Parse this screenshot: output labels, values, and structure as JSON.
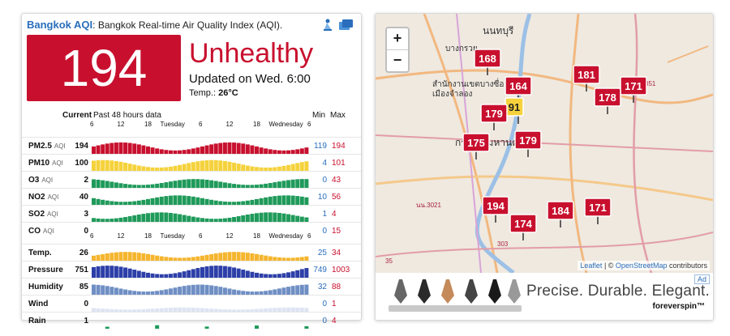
{
  "header": {
    "city": "Bangkok AQI",
    "sep": ":",
    "subtitle": "Bangkok Real-time Air Quality Index (AQI)."
  },
  "aqi": {
    "value": "194",
    "status": "Unhealthy",
    "updated": "Updated on Wed. 6:00",
    "temp_label": "Temp.:",
    "temp_value": "26°C"
  },
  "colors": {
    "unhealthy": "#c8102e",
    "moderate": "#f5d23c",
    "good": "#1f9a5a",
    "blue_link": "#2a6ebb"
  },
  "table": {
    "col_current": "Current",
    "col_history": "Past 48 hours data",
    "col_min": "Min",
    "col_max": "Max",
    "tick_labels": [
      "6",
      "12",
      "18",
      "Tuesday",
      "6",
      "12",
      "18",
      "Wednesday",
      "6"
    ],
    "rows": [
      {
        "name": "PM2.5",
        "unit": "AQI",
        "current": "194",
        "min": "119",
        "max": "194",
        "color": "#c8102e",
        "level": 0.75
      },
      {
        "name": "PM10",
        "unit": "AQI",
        "current": "100",
        "min": "4",
        "max": "101",
        "color": "#f5d23c",
        "level": 0.7
      },
      {
        "name": "O3",
        "unit": "AQI",
        "current": "2",
        "min": "0",
        "max": "43",
        "color": "#1f9a5a",
        "level": 0.55
      },
      {
        "name": "NO2",
        "unit": "AQI",
        "current": "40",
        "min": "10",
        "max": "56",
        "color": "#1f9a5a",
        "level": 0.6
      },
      {
        "name": "SO2",
        "unit": "AQI",
        "current": "3",
        "min": "1",
        "max": "4",
        "color": "#1f9a5a",
        "level": 0.6
      },
      {
        "name": "CO",
        "unit": "AQI",
        "current": "0",
        "min": "0",
        "max": "15",
        "color": "#1f9a5a",
        "level": 0.0
      },
      {
        "name": "Temp.",
        "unit": "",
        "current": "26",
        "min": "25",
        "max": "34",
        "color": "#f5b52e",
        "level": 0.55
      },
      {
        "name": "Pressure",
        "unit": "",
        "current": "751",
        "min": "749",
        "max": "1003",
        "color": "#2d3fa8",
        "level": 0.8
      },
      {
        "name": "Humidity",
        "unit": "",
        "current": "85",
        "min": "32",
        "max": "88",
        "color": "#6f8fc4",
        "level": 0.65
      },
      {
        "name": "Wind",
        "unit": "",
        "current": "0",
        "min": "0",
        "max": "1",
        "color": "#dde4f3",
        "level": 0.2
      },
      {
        "name": "Rain",
        "unit": "",
        "current": "1",
        "min": "0",
        "max": "4",
        "color": "#1f9a5a",
        "level": 0.15
      }
    ]
  },
  "map": {
    "zoom_in": "+",
    "zoom_out": "−",
    "attribution_leaflet": "Leaflet",
    "attribution_sep": " | © ",
    "attribution_osm": "OpenStreetMap",
    "attribution_tail": " contributors",
    "markers": [
      "168",
      "164",
      "91",
      "181",
      "171",
      "178",
      "179",
      "175",
      "179",
      "194",
      "184",
      "174",
      "171"
    ],
    "places": [
      "นนทบุรี",
      "บางกรวย",
      "สำนักงานเขตบางซื่อ",
      "เมืองจำลอง",
      "กรุงเทพมหานคร"
    ],
    "roads": [
      "351",
      "35",
      "303",
      "นน.3021"
    ]
  },
  "ad": {
    "badge": "Ad",
    "slogan": "Precise. Durable. Elegant.",
    "brand": "foreverspin™"
  }
}
